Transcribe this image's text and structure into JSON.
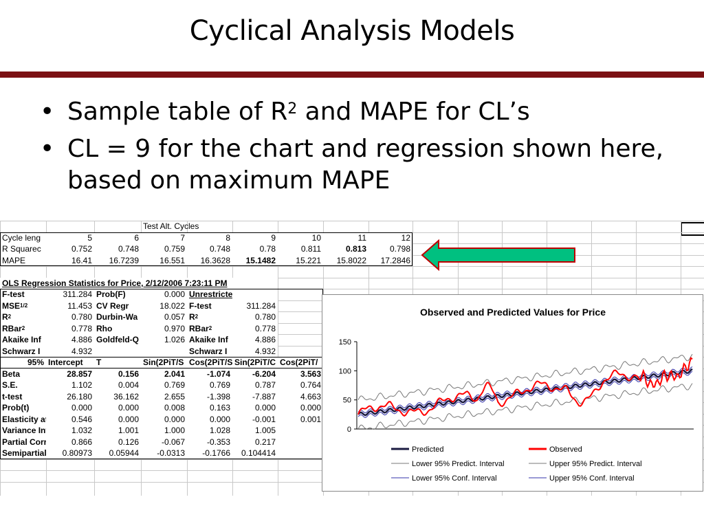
{
  "slide": {
    "title": "Cyclical Analysis Models",
    "bullets": [
      {
        "pre": "Sample table of R",
        "sup": "2",
        "post": " and MAPE for CL’s"
      },
      {
        "text": "CL = 9 for the chart and regression shown here, based on maximum MAPE"
      }
    ]
  },
  "cycles_table": {
    "header": "Test Alt. Cycles",
    "rows": [
      {
        "label": "Cycle leng",
        "values": [
          "5",
          "6",
          "7",
          "8",
          "9",
          "10",
          "11",
          "12"
        ]
      },
      {
        "label": "R Squarec",
        "values": [
          "0.752",
          "0.748",
          "0.759",
          "0.748",
          "0.78",
          "0.811",
          "0.813",
          "0.798"
        ]
      },
      {
        "label": "MAPE",
        "values": [
          "16.41",
          "16.7239",
          "16.551",
          "16.3628",
          "15.1482",
          "15.221",
          "15.8022",
          "17.2846"
        ]
      }
    ]
  },
  "ols": {
    "title": "OLS Regression Statistics for Price, 2/12/2006 7:23:11 PM",
    "stats": [
      [
        "F-test",
        "311.284",
        "Prob(F)",
        "0.000",
        "Unrestricted Model",
        ""
      ],
      [
        "MSE",
        "11.453",
        "CV Regr",
        "18.022",
        "F-test",
        "311.284"
      ],
      [
        "R",
        "0.780",
        "Durbin-Wa",
        "0.057",
        "R",
        "0.780"
      ],
      [
        "RBar",
        "0.778",
        "Rho",
        "0.970",
        "RBar",
        "0.778"
      ],
      [
        "Akaike Inf",
        "4.886",
        "Goldfeld-Q",
        "1.026",
        "Akaike Inf",
        "4.886"
      ],
      [
        "Schwarz I",
        "4.932",
        "",
        "",
        "Schwarz I",
        "4.932"
      ]
    ],
    "mse_sup": "1/2",
    "sq_sup": "2",
    "coef_header": [
      "95%",
      "Intercept",
      "T",
      "Sin(2PiT/S",
      "Cos(2PiT/S",
      "Sin(2PiT/C",
      "Cos(2PiT/"
    ],
    "coef_rows": [
      [
        "Beta",
        "28.857",
        "0.156",
        "2.041",
        "-1.074",
        "-6.204",
        "3.563"
      ],
      [
        "S.E.",
        "1.102",
        "0.004",
        "0.769",
        "0.769",
        "0.787",
        "0.764"
      ],
      [
        "t-test",
        "26.180",
        "36.162",
        "2.655",
        "-1.398",
        "-7.887",
        "4.663"
      ],
      [
        "Prob(t)",
        "0.000",
        "0.000",
        "0.008",
        "0.163",
        "0.000",
        "0.000"
      ],
      [
        "Elasticity at Mean",
        "0.546",
        "0.000",
        "0.000",
        "0.000",
        "-0.001",
        "0.001"
      ],
      [
        "Variance Inflation Fac",
        "1.032",
        "1.001",
        "1.000",
        "1.028",
        "1.005",
        ""
      ],
      [
        "Partial Correlation",
        "0.866",
        "0.126",
        "-0.067",
        "-0.353",
        "0.217",
        ""
      ],
      [
        "Semipartial Correlatio",
        "0.80973",
        "0.05944",
        "-0.0313",
        "-0.1766",
        "0.104414",
        ""
      ]
    ]
  },
  "chart_data": {
    "type": "line",
    "title": "Observed and Predicted Values for Price",
    "ylim": [
      0,
      150
    ],
    "yticks": [
      "150",
      "100",
      "50",
      "0"
    ],
    "legend_position": "bottom",
    "series": [
      {
        "name": "Predicted",
        "color": "#1a1a40"
      },
      {
        "name": "Observed",
        "color": "#ff0000"
      },
      {
        "name": "Lower 95% Predict. Interval",
        "color": "#666666"
      },
      {
        "name": "Upper 95% Predict. Interval",
        "color": "#666666"
      },
      {
        "name": "Lower 95% Conf. Interval",
        "color": "#3333aa"
      },
      {
        "name": "Upper 95% Conf. Interval",
        "color": "#3333aa"
      }
    ],
    "predicted_approx": [
      25,
      30,
      35,
      38,
      42,
      45,
      50,
      55,
      58,
      62,
      65,
      68,
      70,
      72,
      75,
      78,
      80,
      82,
      85,
      88,
      92,
      95,
      97,
      98
    ],
    "observed_approx": [
      24,
      28,
      33,
      30,
      40,
      35,
      55,
      48,
      60,
      90,
      80,
      62,
      60,
      70,
      78,
      65,
      80,
      95,
      70,
      60,
      78,
      100,
      92,
      110
    ]
  },
  "colors": {
    "title_rule": "#7b1113",
    "arrow_fill": "#00c080",
    "arrow_stroke": "#c00000"
  }
}
